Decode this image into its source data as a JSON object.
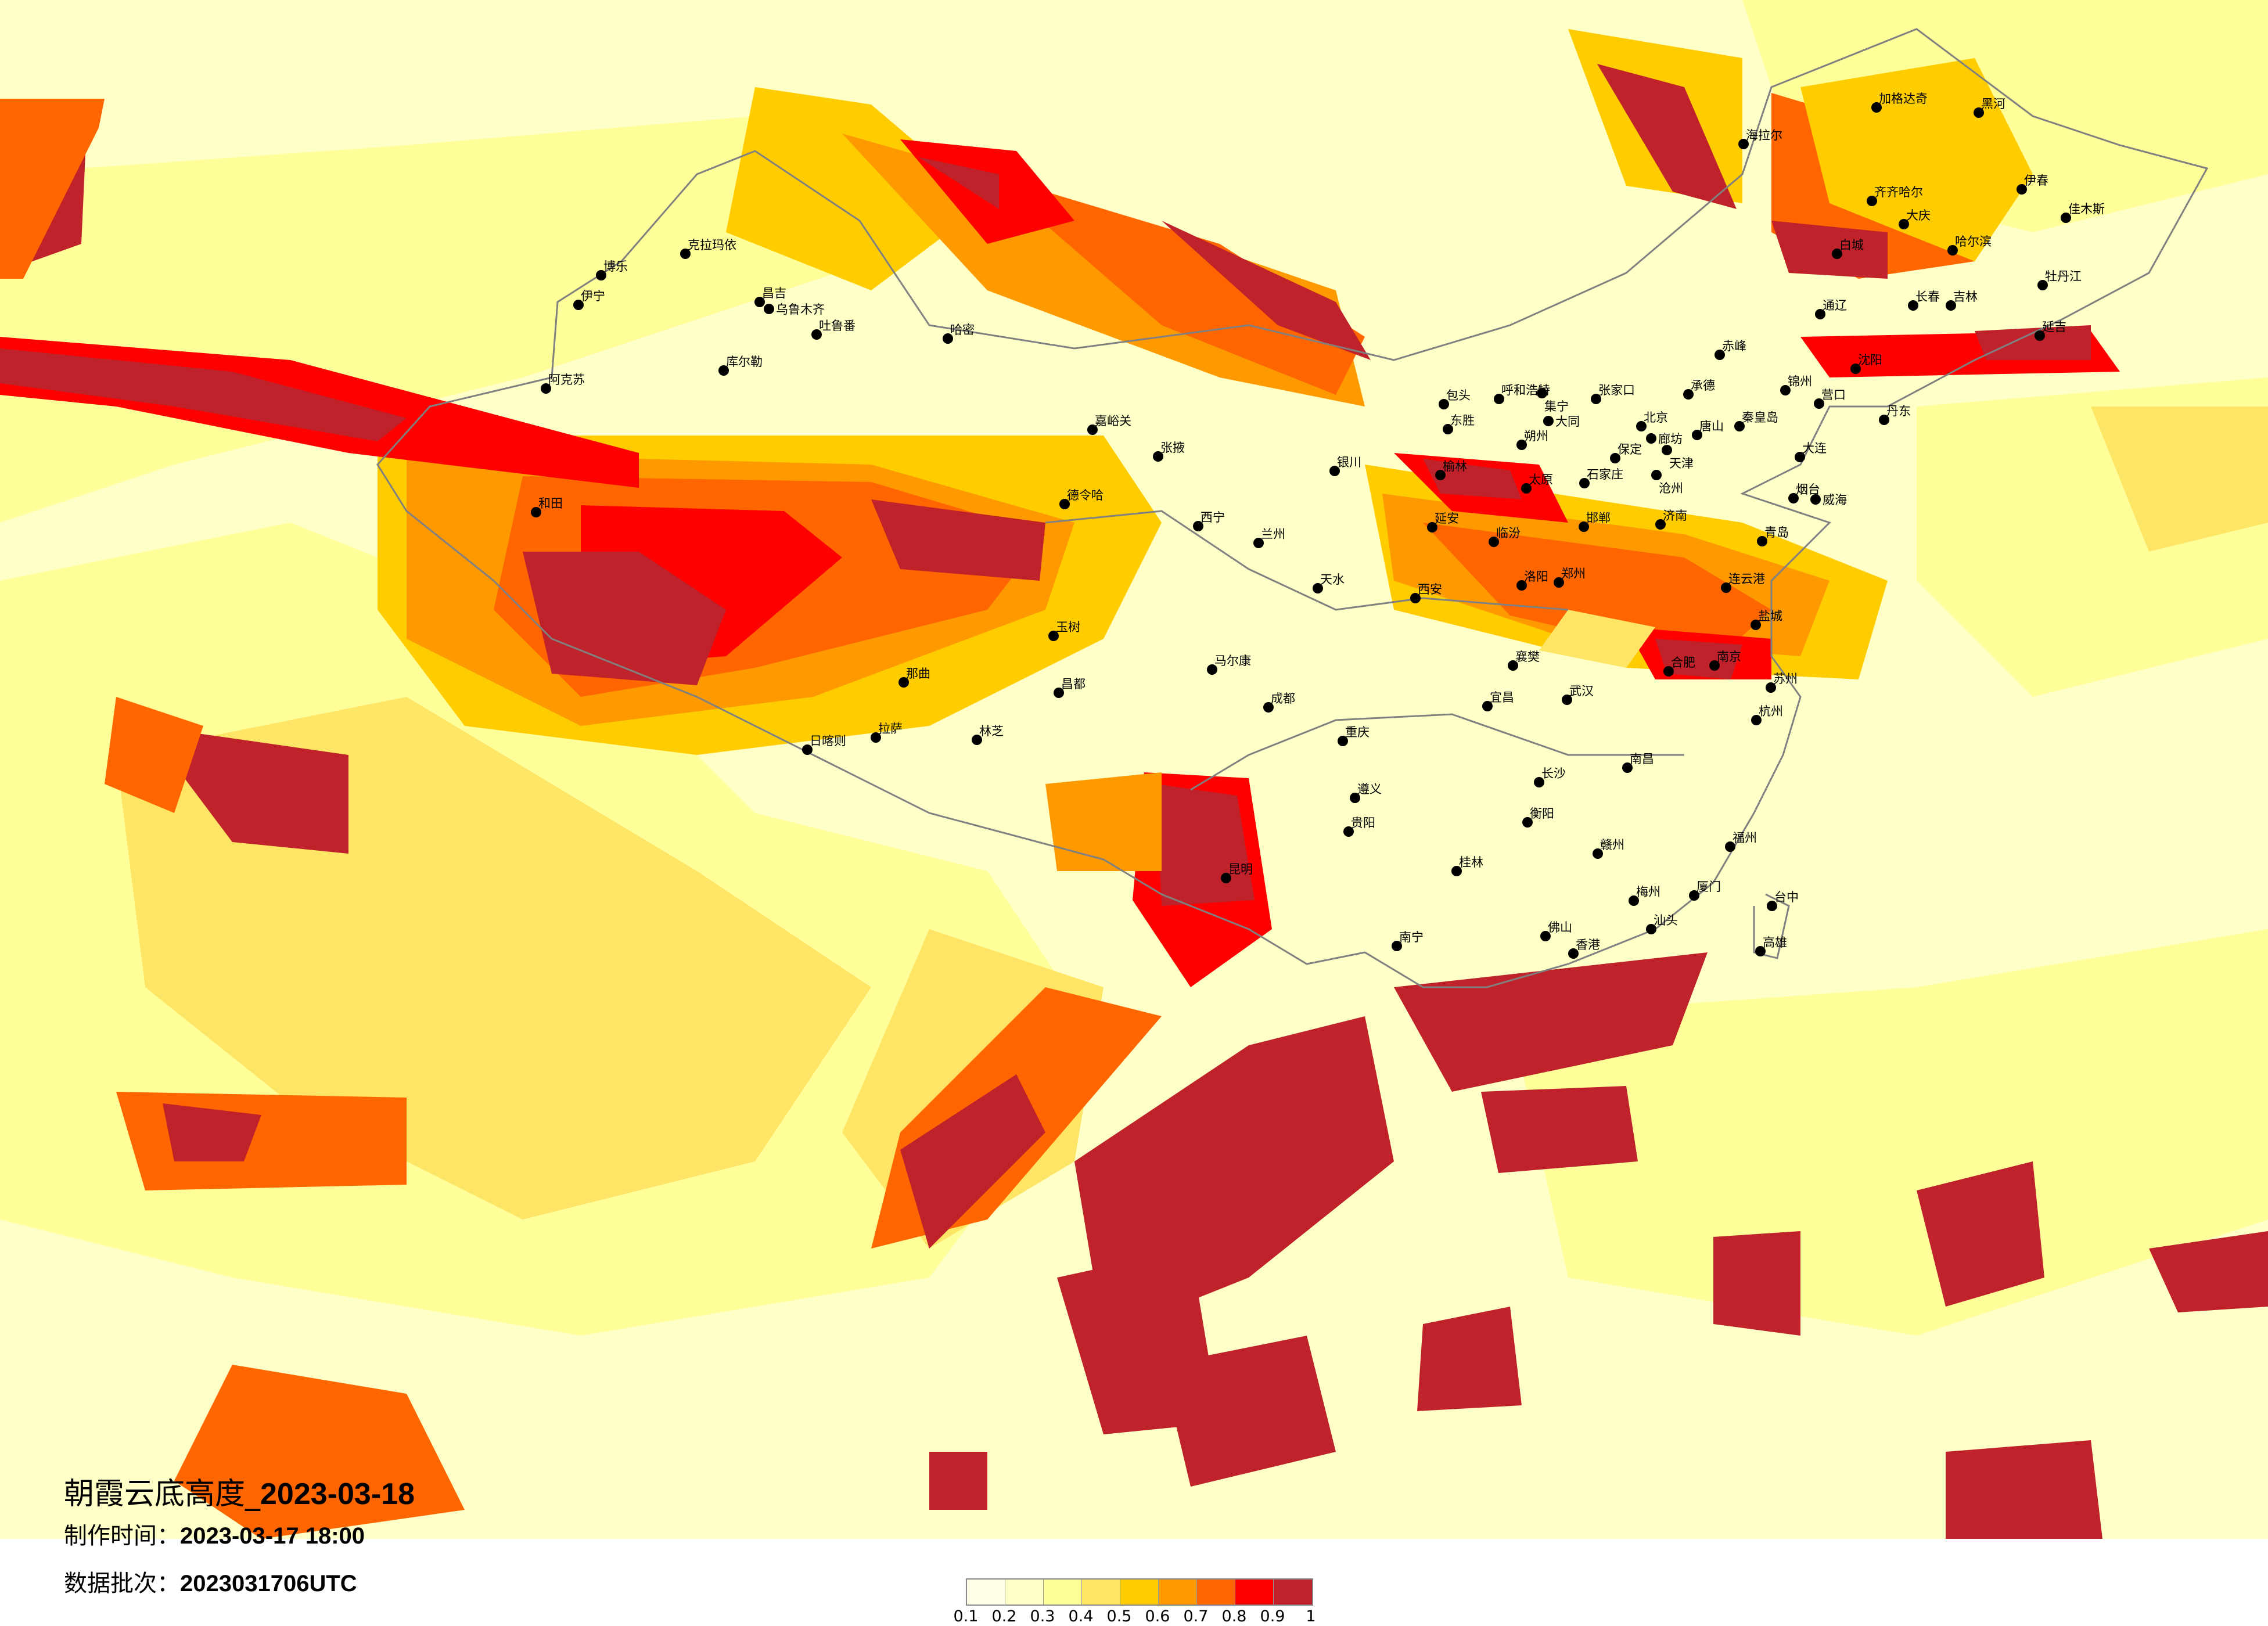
{
  "title": {
    "prefix": "朝霞云底高度_",
    "date": "2023-03-18"
  },
  "production_time": {
    "label": "制作时间：",
    "value": "2023-03-17 18:00"
  },
  "data_batch": {
    "label": "数据批次：",
    "value": "2023031706UTC"
  },
  "legend": {
    "ticks": [
      "0.1",
      "0.2",
      "0.3",
      "0.4",
      "0.5",
      "0.6",
      "0.7",
      "0.8",
      "0.9",
      "1"
    ],
    "colors": [
      "#FFFFE8",
      "#FFFFC8",
      "#FFFF99",
      "#FFE566",
      "#FFCC00",
      "#FF9900",
      "#FF6600",
      "#FF0000",
      "#C0222B"
    ]
  },
  "map": {
    "background_color": "#FFFFF2",
    "border_color": "#808080",
    "cities": [
      "克拉玛依",
      "博乐",
      "伊宁",
      "昌吉",
      "乌鲁木齐",
      "吐鲁番",
      "哈密",
      "库尔勒",
      "阿克苏",
      "和田",
      "包头",
      "呼和浩特",
      "集宁",
      "张家口",
      "大同",
      "东胜",
      "朔州",
      "北京",
      "廊坊",
      "天津",
      "唐山",
      "承德",
      "秦皇岛",
      "保定",
      "沧州",
      "石家庄",
      "榆林",
      "太原",
      "延安",
      "济南",
      "青岛",
      "大连",
      "烟台",
      "威海",
      "郑州",
      "洛阳",
      "西安",
      "临汾",
      "邯郸",
      "连云港",
      "盐城",
      "丹东",
      "沈阳",
      "锦州",
      "营口",
      "成都",
      "重庆",
      "武汉",
      "长沙",
      "南昌",
      "杭州",
      "南京",
      "合肥",
      "苏州",
      "贵阳",
      "昆明",
      "桂林",
      "南宁",
      "福州",
      "厦门",
      "佛山",
      "香港",
      "台中",
      "高雄",
      "宜昌",
      "襄樊",
      "遵义",
      "赣州",
      "衡阳",
      "梅州",
      "汕头",
      "加格达奇",
      "黑河",
      "海拉尔",
      "齐齐哈尔",
      "大庆",
      "哈尔滨",
      "伊春",
      "佳木斯",
      "牡丹江",
      "长春",
      "吉林",
      "延吉",
      "通辽",
      "赤峰",
      "白城",
      "嘉峪关",
      "德令哈",
      "张掖",
      "西宁",
      "兰州",
      "银川",
      "玉树",
      "拉萨",
      "日喀则",
      "林芝",
      "那曲",
      "昌都",
      "天水",
      "马尔康"
    ]
  }
}
